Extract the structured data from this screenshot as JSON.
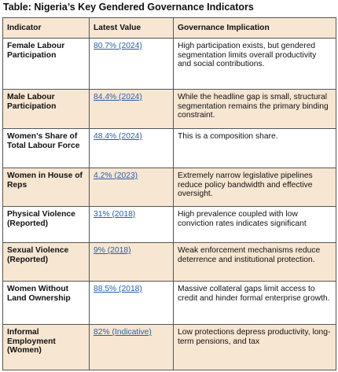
{
  "title": "Table: Nigeria’s Key Gendered Governance Indicators",
  "table": {
    "headers": [
      "Indicator",
      "Latest Value",
      "Governance Implication"
    ],
    "rows": [
      [
        "Female Labour Participation",
        "80.7% (2024)",
        "High participation exists, but gendered segmentation limits overall productivity and social contributions."
      ],
      [
        "Male Labour Participation",
        "84.4% (2024)",
        "While the headline gap is small, structural segmentation remains the primary binding constraint."
      ],
      [
        "Women’s Share of Total Labour Force",
        "48.4% (2024)",
        "This is a composition share."
      ],
      [
        "Women in House of Reps",
        "4.2% (2023)",
        "Extremely narrow legislative pipelines reduce policy bandwidth and effective oversight."
      ],
      [
        "Physical Violence (Reported)",
        "31% (2018)",
        "High prevalence coupled with low conviction rates indicates significant"
      ],
      [
        "Sexual Violence (Reported)",
        "9% (2018)",
        "Weak enforcement mechanisms reduce deterrence and institutional protection."
      ],
      [
        "Women Without Land Ownership",
        "88.5% (2018)",
        "Massive collateral gaps limit access to credit and hinder formal enterprise growth."
      ],
      [
        "Informal Employment (Women)",
        "82% (Indicative)",
        "Low protections depress productivity, long-term pensions, and tax"
      ]
    ]
  }
}
